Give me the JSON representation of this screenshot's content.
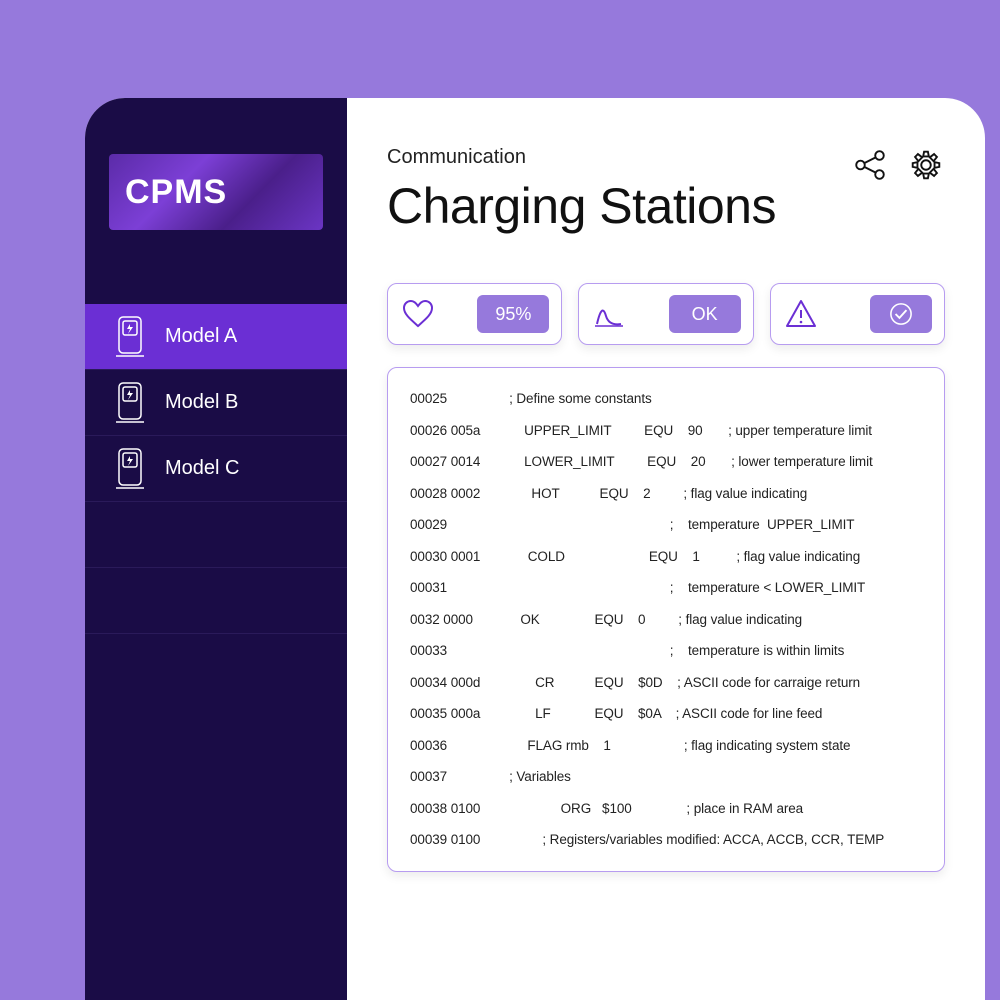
{
  "logo": "CPMS",
  "sidebar": {
    "items": [
      {
        "label": "Model A",
        "active": true
      },
      {
        "label": "Model B",
        "active": false
      },
      {
        "label": "Model C",
        "active": false
      }
    ],
    "empty_rows": 2
  },
  "header": {
    "breadcrumb": "Communication",
    "title": "Charging Stations"
  },
  "status_cards": [
    {
      "icon": "heart",
      "badge_text": "95%"
    },
    {
      "icon": "curve",
      "badge_text": "OK"
    },
    {
      "icon": "alert",
      "badge_icon": "check"
    }
  ],
  "code": {
    "lines": [
      "00025                 ; Define some constants",
      "00026 005a            UPPER_LIMIT         EQU    90       ; upper temperature limit",
      "00027 0014            LOWER_LIMIT         EQU    20       ; lower temperature limit",
      "00028 0002              HOT           EQU    2         ; flag value indicating",
      "00029                                                             ;    temperature  UPPER_LIMIT",
      "00030 0001             COLD                       EQU    1          ; flag value indicating",
      "00031                                                             ;    temperature < LOWER_LIMIT",
      "0032 0000             OK               EQU    0         ; flag value indicating",
      "00033                                                             ;    temperature is within limits",
      "00034 000d               CR           EQU    $0D    ; ASCII code for carraige return",
      "00035 000a               LF            EQU    $0A    ; ASCII code for line feed",
      "00036                      FLAG rmb    1                    ; flag indicating system state",
      "00037                 ; Variables",
      "00038 0100                      ORG   $100               ; place in RAM area",
      "00039 0100                 ; Registers/variables modified: ACCA, ACCB, CCR, TEMP"
    ]
  },
  "colors": {
    "page_bg": "#9679dc",
    "sidebar_bg": "#1a0c46",
    "active_item": "#6b2fd4",
    "card_border": "#b79cf0",
    "badge_bg": "#9679dc"
  }
}
